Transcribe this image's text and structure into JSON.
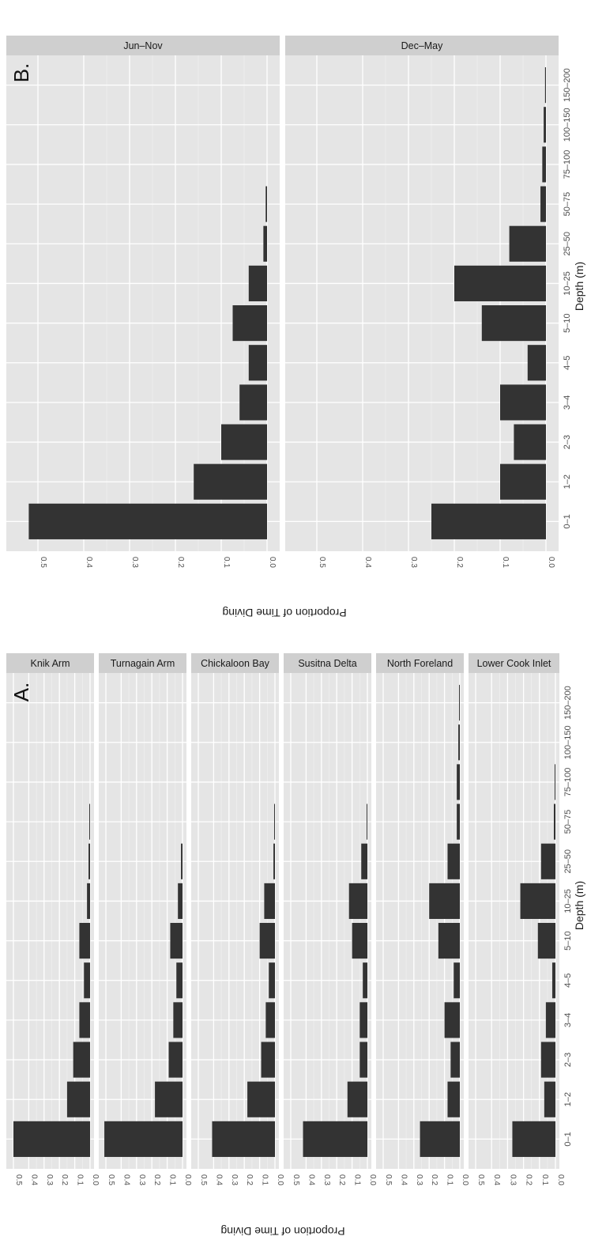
{
  "chart_data": [
    {
      "type": "bar",
      "panel_label": "A.",
      "orientation_note": "figure rotated 90 degrees clockwise",
      "xlabel": "Depth (m)",
      "ylabel": "Proportion of Time Diving",
      "ylim": [
        0,
        0.5
      ],
      "yticks": [
        "0.5",
        "0.4",
        "0.3",
        "0.2",
        "0.1",
        "0.0"
      ],
      "categories": [
        "0–1",
        "1–2",
        "2–3",
        "3–4",
        "4–5",
        "5–10",
        "10–25",
        "25–50",
        "50–75",
        "75–100",
        "100–150",
        "150–200"
      ],
      "facets": [
        {
          "name": "Knik Arm",
          "values": [
            0.5,
            0.15,
            0.11,
            0.07,
            0.04,
            0.07,
            0.02,
            0.01,
            0.005,
            0,
            0,
            0
          ]
        },
        {
          "name": "Turnagain Arm",
          "values": [
            0.51,
            0.18,
            0.09,
            0.06,
            0.04,
            0.08,
            0.03,
            0.01,
            0,
            0,
            0,
            0
          ]
        },
        {
          "name": "Chickaloon Bay",
          "values": [
            0.41,
            0.18,
            0.09,
            0.06,
            0.04,
            0.1,
            0.07,
            0.01,
            0.005,
            0,
            0,
            0
          ]
        },
        {
          "name": "Susitna Delta",
          "values": [
            0.42,
            0.13,
            0.05,
            0.05,
            0.03,
            0.1,
            0.12,
            0.04,
            0.005,
            0,
            0,
            0
          ]
        },
        {
          "name": "North Foreland",
          "values": [
            0.26,
            0.08,
            0.06,
            0.1,
            0.04,
            0.14,
            0.2,
            0.08,
            0.02,
            0.02,
            0.01,
            0.005
          ]
        },
        {
          "name": "Lower Cook Inlet",
          "values": [
            0.27,
            0.07,
            0.09,
            0.06,
            0.02,
            0.11,
            0.22,
            0.09,
            0.01,
            0.005,
            0,
            0
          ]
        }
      ]
    },
    {
      "type": "bar",
      "panel_label": "B.",
      "orientation_note": "figure rotated 90 degrees clockwise",
      "xlabel": "Depth (m)",
      "ylabel": "Proportion of Time Diving",
      "ylim": [
        0,
        0.55
      ],
      "yticks": [
        "0.5",
        "0.4",
        "0.3",
        "0.2",
        "0.1",
        "0.0"
      ],
      "categories": [
        "0–1",
        "1–2",
        "2–3",
        "3–4",
        "4–5",
        "5–10",
        "10–25",
        "25–50",
        "50–75",
        "75–100",
        "100–150",
        "150–200"
      ],
      "facets": [
        {
          "name": "Jun–Nov",
          "values": [
            0.52,
            0.16,
            0.1,
            0.06,
            0.04,
            0.075,
            0.04,
            0.008,
            0.003,
            0,
            0,
            0
          ]
        },
        {
          "name": "Dec–May",
          "values": [
            0.25,
            0.1,
            0.07,
            0.1,
            0.04,
            0.14,
            0.2,
            0.08,
            0.012,
            0.008,
            0.005,
            0.002
          ]
        }
      ]
    }
  ]
}
